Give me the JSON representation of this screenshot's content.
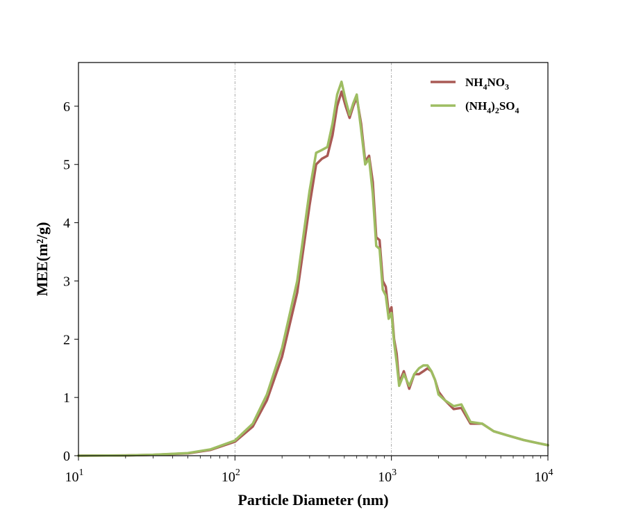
{
  "chart_data": {
    "type": "line",
    "title": "",
    "xlabel": "Particle Diameter (nm)",
    "ylabel": "MEE(m²/g)",
    "xscale": "log",
    "xlim": [
      10,
      10000
    ],
    "ylim": [
      0,
      6.75
    ],
    "xticks": [
      {
        "value": 10,
        "base": "10",
        "exp": "1"
      },
      {
        "value": 100,
        "base": "10",
        "exp": "2"
      },
      {
        "value": 1000,
        "base": "10",
        "exp": "3"
      },
      {
        "value": 10000,
        "base": "10",
        "exp": "4"
      }
    ],
    "yticks": [
      "0",
      "1",
      "2",
      "3",
      "4",
      "5",
      "6"
    ],
    "vertical_reference_lines": [
      100,
      1000
    ],
    "legend_placement": "top-right",
    "series": [
      {
        "name": "NH4NO3",
        "color": "#a95a55",
        "x": [
          10,
          20,
          30,
          50,
          70,
          100,
          130,
          160,
          200,
          250,
          300,
          330,
          360,
          390,
          420,
          450,
          480,
          510,
          540,
          570,
          600,
          640,
          680,
          720,
          760,
          800,
          840,
          880,
          920,
          960,
          1000,
          1040,
          1080,
          1120,
          1200,
          1300,
          1400,
          1500,
          1600,
          1700,
          1800,
          1900,
          2000,
          2200,
          2500,
          2800,
          3200,
          3800,
          4500,
          5500,
          7000,
          8500,
          10000
        ],
        "y": [
          0,
          0.005,
          0.015,
          0.04,
          0.1,
          0.24,
          0.5,
          0.95,
          1.7,
          2.8,
          4.3,
          5.0,
          5.1,
          5.15,
          5.5,
          6.0,
          6.25,
          6.0,
          5.8,
          6.0,
          6.15,
          5.7,
          5.05,
          5.15,
          4.7,
          3.75,
          3.7,
          3.0,
          2.9,
          2.45,
          2.55,
          2.0,
          1.75,
          1.25,
          1.45,
          1.15,
          1.4,
          1.4,
          1.45,
          1.5,
          1.45,
          1.3,
          1.1,
          0.95,
          0.8,
          0.82,
          0.55,
          0.55,
          0.42,
          0.35,
          0.27,
          0.22,
          0.18
        ]
      },
      {
        "name": "(NH4)2SO4",
        "color": "#9ebd62",
        "x": [
          10,
          20,
          30,
          50,
          70,
          100,
          130,
          160,
          200,
          250,
          300,
          330,
          360,
          390,
          420,
          450,
          480,
          510,
          540,
          570,
          600,
          640,
          680,
          720,
          760,
          800,
          840,
          880,
          920,
          960,
          1000,
          1040,
          1080,
          1120,
          1200,
          1300,
          1400,
          1500,
          1600,
          1700,
          1800,
          1900,
          2000,
          2200,
          2500,
          2800,
          3200,
          3800,
          4500,
          5500,
          7000,
          8500,
          10000
        ],
        "y": [
          0,
          0.005,
          0.017,
          0.045,
          0.11,
          0.26,
          0.55,
          1.05,
          1.85,
          3.0,
          4.55,
          5.2,
          5.25,
          5.3,
          5.7,
          6.2,
          6.42,
          6.1,
          5.85,
          6.05,
          6.2,
          5.6,
          5.0,
          5.1,
          4.5,
          3.6,
          3.55,
          2.85,
          2.75,
          2.35,
          2.45,
          1.95,
          1.6,
          1.2,
          1.4,
          1.2,
          1.4,
          1.5,
          1.55,
          1.55,
          1.45,
          1.3,
          1.05,
          0.95,
          0.85,
          0.88,
          0.58,
          0.55,
          0.42,
          0.35,
          0.27,
          0.22,
          0.18
        ]
      }
    ]
  }
}
